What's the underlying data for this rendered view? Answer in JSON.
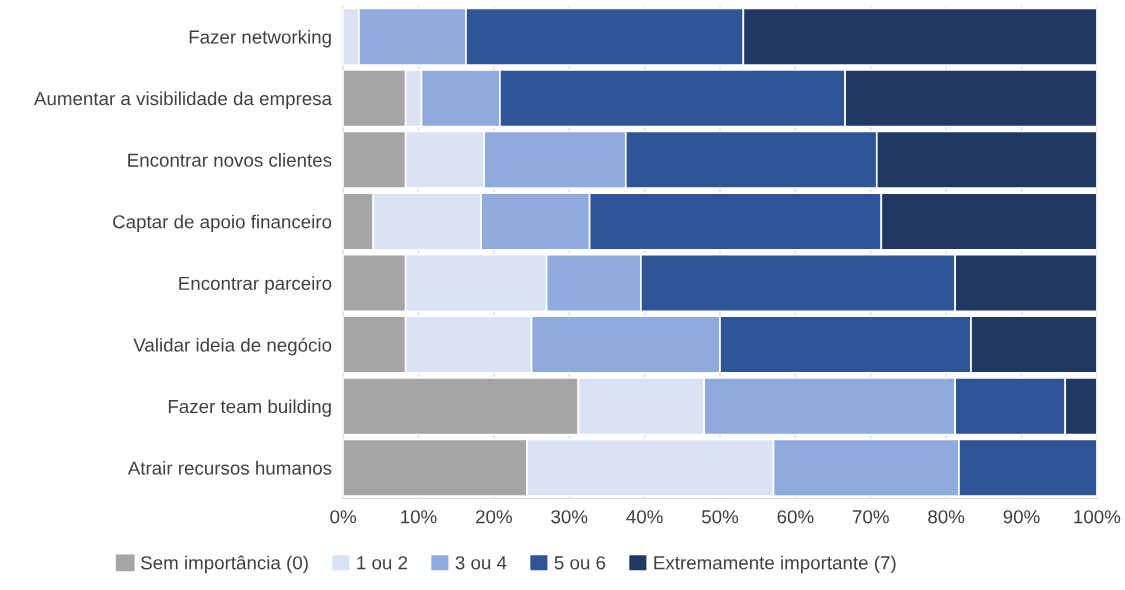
{
  "chart_data": {
    "type": "bar",
    "orientation": "horizontal",
    "stacked": true,
    "categories": [
      "Fazer networking",
      "Aumentar a visibilidade da empresa",
      "Encontrar novos clientes",
      "Captar de apoio financeiro",
      "Encontrar parceiro",
      "Validar ideia de negócio",
      "Fazer team building",
      "Atrair recursos humanos"
    ],
    "series": [
      {
        "name": "Sem importância (0)",
        "color": "#a5a5a5",
        "values": [
          0,
          8.3,
          8.3,
          4.0,
          8.3,
          8.3,
          31.2,
          24.4
        ]
      },
      {
        "name": "1 ou 2",
        "color": "#dae3f3",
        "values": [
          2.1,
          2.1,
          10.4,
          14.3,
          18.7,
          16.7,
          16.7,
          32.7
        ]
      },
      {
        "name": "3 ou 4",
        "color": "#8faadc",
        "values": [
          14.2,
          10.4,
          18.8,
          14.4,
          12.5,
          25.0,
          33.3,
          24.6
        ]
      },
      {
        "name": "5 ou 6",
        "color": "#2f5597",
        "values": [
          36.8,
          45.8,
          33.3,
          38.7,
          41.7,
          33.3,
          14.6,
          18.3
        ]
      },
      {
        "name": "Extremamente importante (7)",
        "color": "#203864",
        "values": [
          46.9,
          33.4,
          29.2,
          28.6,
          18.8,
          16.7,
          4.2,
          0
        ]
      }
    ],
    "xlim": [
      0,
      100
    ],
    "xticks": [
      {
        "value": 0,
        "label": "0%"
      },
      {
        "value": 10,
        "label": "10%"
      },
      {
        "value": 20,
        "label": "20%"
      },
      {
        "value": 30,
        "label": "30%"
      },
      {
        "value": 40,
        "label": "40%"
      },
      {
        "value": 50,
        "label": "50%"
      },
      {
        "value": 60,
        "label": "60%"
      },
      {
        "value": 70,
        "label": "70%"
      },
      {
        "value": 80,
        "label": "80%"
      },
      {
        "value": 90,
        "label": "90%"
      },
      {
        "value": 100,
        "label": "100%"
      }
    ],
    "grid": "x",
    "legend": "bottom"
  }
}
